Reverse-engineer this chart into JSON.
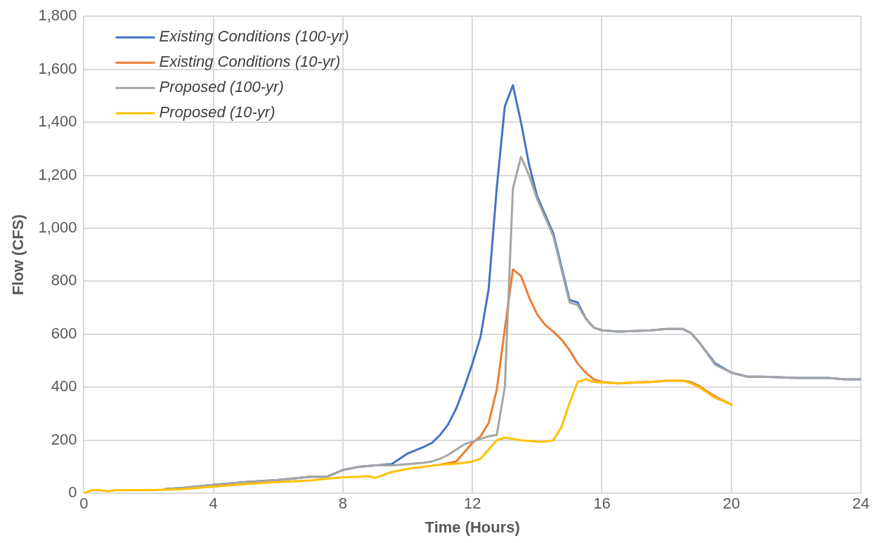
{
  "chart_data": {
    "type": "line",
    "xlabel": "Time (Hours)",
    "ylabel": "Flow (CFS)",
    "xlim": [
      0,
      24
    ],
    "xticks": [
      0,
      4,
      8,
      12,
      16,
      20,
      24
    ],
    "ylim": [
      0,
      1800
    ],
    "yticks": [
      {
        "value": 0,
        "label": "0"
      },
      {
        "value": 200,
        "label": "200"
      },
      {
        "value": 400,
        "label": "400"
      },
      {
        "value": 600,
        "label": "600"
      },
      {
        "value": 800,
        "label": "800"
      },
      {
        "value": 1000,
        "label": "1,000"
      },
      {
        "value": 1200,
        "label": "1,200"
      },
      {
        "value": 1400,
        "label": "1,400"
      },
      {
        "value": 1600,
        "label": "1,600"
      },
      {
        "value": 1800,
        "label": "1,800"
      }
    ],
    "grid": true,
    "legend": "top left",
    "marker": "none",
    "line_style": "solid",
    "series": [
      {
        "name": "Existing Conditions (100-yr)",
        "color": "#4472c4",
        "x": [
          2.5,
          3,
          4,
          5,
          6,
          7,
          7.5,
          8,
          8.5,
          9,
          9.5,
          10,
          10.5,
          10.75,
          11,
          11.25,
          11.5,
          11.75,
          12,
          12.25,
          12.5,
          12.75,
          13,
          13.25,
          13.5,
          13.75,
          14,
          14.5,
          15,
          15.25,
          15.5,
          15.75,
          16,
          16.5,
          17,
          17.5,
          18,
          18.5,
          18.75,
          19,
          19.5,
          20,
          20.5,
          21,
          22,
          23,
          23.5,
          24
        ],
        "values": [
          16,
          20,
          32,
          42,
          50,
          62,
          62,
          88,
          100,
          105,
          110,
          150,
          175,
          190,
          220,
          260,
          320,
          400,
          490,
          590,
          770,
          1150,
          1460,
          1540,
          1400,
          1240,
          1120,
          980,
          730,
          720,
          660,
          625,
          615,
          610,
          612,
          615,
          620,
          620,
          605,
          570,
          490,
          455,
          440,
          440,
          435,
          435,
          430,
          430
        ]
      },
      {
        "name": "Existing Conditions (10-yr)",
        "color": "#ed7d31",
        "x": [
          11,
          11.5,
          11.75,
          12,
          12.25,
          12.5,
          12.75,
          13,
          13.25,
          13.5,
          13.75,
          14,
          14.25,
          14.5,
          14.75,
          15,
          15.25,
          15.5,
          15.75,
          16,
          16.5,
          17,
          17.5,
          18,
          18.5,
          18.75,
          19,
          19.5,
          20
        ],
        "values": [
          108,
          120,
          155,
          190,
          215,
          265,
          390,
          620,
          845,
          820,
          740,
          675,
          635,
          610,
          580,
          540,
          490,
          455,
          430,
          420,
          415,
          418,
          420,
          425,
          425,
          420,
          405,
          365,
          335
        ]
      },
      {
        "name": "Proposed (100-yr)",
        "color": "#a5a5a5",
        "x": [
          2.5,
          3,
          4,
          5,
          6,
          7,
          7.5,
          8,
          8.5,
          9,
          9.5,
          10,
          10.5,
          10.75,
          11,
          11.25,
          11.5,
          11.75,
          12,
          12.25,
          12.5,
          12.75,
          13,
          13.25,
          13.5,
          13.75,
          14,
          14.5,
          15,
          15.25,
          15.5,
          15.75,
          16,
          16.5,
          17,
          17.5,
          18,
          18.5,
          18.75,
          19,
          19.5,
          20,
          20.5,
          21,
          22,
          23,
          23.5,
          24
        ],
        "values": [
          16,
          20,
          32,
          42,
          50,
          62,
          62,
          88,
          100,
          105,
          105,
          110,
          115,
          120,
          130,
          145,
          165,
          185,
          195,
          205,
          215,
          220,
          400,
          1150,
          1270,
          1200,
          1110,
          970,
          720,
          710,
          660,
          625,
          615,
          610,
          612,
          615,
          620,
          620,
          605,
          570,
          485,
          455,
          440,
          440,
          435,
          435,
          430,
          430
        ]
      },
      {
        "name": "Proposed (10-yr)",
        "color": "#ffc000",
        "x": [
          0,
          0.25,
          0.5,
          0.75,
          1,
          2,
          3,
          4,
          5,
          6,
          7,
          7.5,
          8,
          8.5,
          8.75,
          9,
          9.5,
          10,
          10.5,
          11,
          11.5,
          11.75,
          12,
          12.25,
          12.5,
          12.75,
          13,
          13.25,
          13.5,
          14,
          14.25,
          14.5,
          14.75,
          15,
          15.25,
          15.5,
          15.75,
          16,
          16.5,
          17,
          17.5,
          18,
          18.5,
          18.75,
          19,
          19.5,
          20
        ],
        "values": [
          0,
          12,
          12,
          8,
          12,
          12,
          15,
          25,
          35,
          42,
          48,
          55,
          60,
          62,
          65,
          58,
          80,
          92,
          100,
          108,
          112,
          115,
          120,
          130,
          165,
          200,
          210,
          205,
          200,
          195,
          195,
          200,
          250,
          340,
          420,
          430,
          420,
          418,
          415,
          418,
          420,
          425,
          425,
          415,
          400,
          360,
          335
        ]
      }
    ]
  }
}
